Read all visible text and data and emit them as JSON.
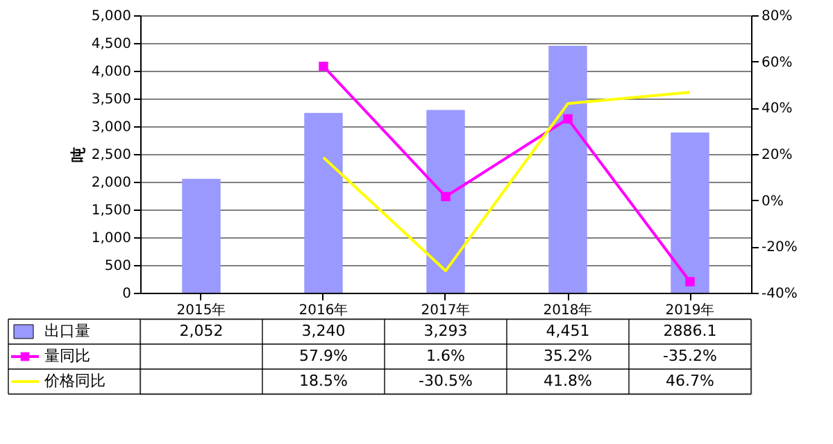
{
  "chart_data": {
    "type": "bar",
    "ylabel": "吨",
    "categories": [
      "2015年",
      "2016年",
      "2017年",
      "2018年",
      "2019年"
    ],
    "series": [
      {
        "name": "出口量",
        "color": "#9999ff",
        "values": [
          2052,
          3240,
          3293,
          4451,
          2886.1
        ],
        "value_labels": [
          "2,052",
          "3,240",
          "3,293",
          "4,451",
          "2886.1"
        ]
      },
      {
        "name": "量同比",
        "type": "line",
        "axis": "y2",
        "color": "#ff00ff",
        "marker": "square",
        "line_style": "solid",
        "values": [
          null,
          57.9,
          1.6,
          35.2,
          -35.2
        ],
        "value_labels": [
          null,
          "57.9%",
          "1.6%",
          "35.2%",
          "-35.2%"
        ]
      },
      {
        "name": "价格同比",
        "type": "line",
        "axis": "y2",
        "color": "#ffff00",
        "marker": "none",
        "line_style": "solid",
        "values": [
          null,
          18.5,
          -30.5,
          41.8,
          46.7
        ],
        "value_labels": [
          null,
          "18.5%",
          "-30.5%",
          "41.8%",
          "46.7%"
        ]
      }
    ],
    "ylim": [
      0,
      5000
    ],
    "yticks": [
      0,
      500,
      {
        "value": 1000,
        "label": "1,000"
      },
      {
        "value": 1500,
        "label": "1,500"
      },
      {
        "value": 2000,
        "label": "2,000"
      },
      {
        "value": 2500,
        "label": "2,500"
      },
      {
        "value": 3000,
        "label": "3,000"
      },
      {
        "value": 3500,
        "label": "3,500"
      },
      {
        "value": 4000,
        "label": "4,000"
      },
      {
        "value": 4500,
        "label": "4,500"
      },
      {
        "value": 5000,
        "label": "5,000"
      }
    ],
    "y2lim": [
      -40,
      80
    ],
    "y2ticks": [
      {
        "value": -40,
        "label": "-40%"
      },
      {
        "value": -20,
        "label": "-20%"
      },
      {
        "value": 0,
        "label": "0%"
      },
      {
        "value": 20,
        "label": "20%"
      },
      {
        "value": 40,
        "label": "40%"
      },
      {
        "value": 60,
        "label": "60%"
      },
      {
        "value": 80,
        "label": "80%"
      }
    ],
    "grid": "y",
    "legend": "bottom"
  }
}
